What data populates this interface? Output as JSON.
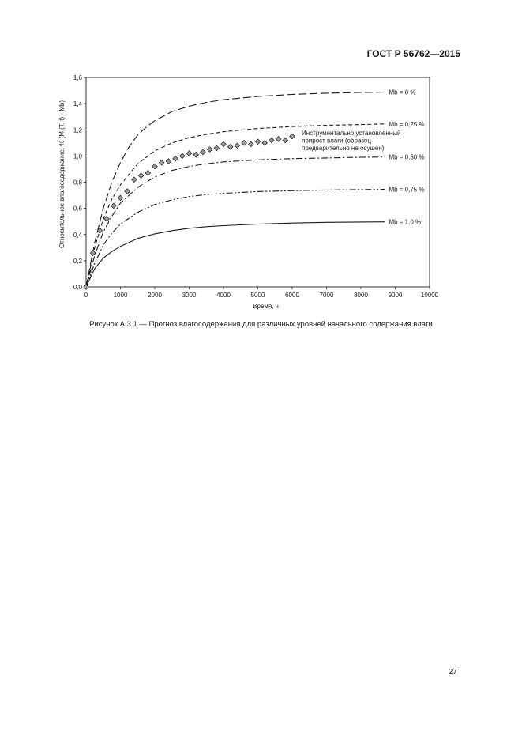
{
  "document": {
    "id": "ГОСТ Р 56762—2015",
    "page_number": "27"
  },
  "figure": {
    "caption": "Рисунок А.3.1 — Прогноз влагосодержания для различных уровней начального содержания влаги"
  },
  "colors": {
    "ink": "#1a1a1a",
    "marker_fill": "#9a9a9a"
  },
  "chart_data": {
    "type": "line",
    "title": "",
    "xlabel": "Время, ч",
    "ylabel": "Относительное влагосодержание, % (M (T, t) - Mb)",
    "xlim": [
      0,
      10000
    ],
    "ylim": [
      0,
      1.6
    ],
    "xticks": [
      0,
      1000,
      2000,
      3000,
      4000,
      5000,
      6000,
      7000,
      8000,
      9000,
      10000
    ],
    "xtick_labels": [
      "0",
      "1000",
      "2000",
      "3000",
      "4000",
      "5000",
      "6000",
      "7000",
      "8000",
      "9000",
      "10000"
    ],
    "yticks": [
      0,
      0.2,
      0.4,
      0.6,
      0.8,
      1.0,
      1.2,
      1.4,
      1.6
    ],
    "ytick_labels": [
      "0,0",
      "0,2",
      "0,4",
      "0,6",
      "0,8",
      "1,0",
      "1,2",
      "1,4",
      "1,6"
    ],
    "grid": false,
    "legend": "labels at line ends (right)",
    "series": [
      {
        "name": "Mb = 0 %",
        "style": "long-dash",
        "x": [
          0,
          250,
          500,
          750,
          1000,
          1250,
          1500,
          1750,
          2000,
          2500,
          3000,
          3500,
          4000,
          5000,
          6000,
          7000,
          8000,
          8700
        ],
        "y": [
          0,
          0.34,
          0.6,
          0.8,
          0.95,
          1.07,
          1.16,
          1.22,
          1.27,
          1.34,
          1.38,
          1.41,
          1.43,
          1.455,
          1.47,
          1.48,
          1.485,
          1.488
        ]
      },
      {
        "name": "Mb = 0,25 %",
        "style": "dash",
        "x": [
          0,
          250,
          500,
          750,
          1000,
          1500,
          2000,
          2500,
          3000,
          3500,
          4000,
          5000,
          6000,
          7000,
          8000,
          8700
        ],
        "y": [
          0,
          0.3,
          0.52,
          0.67,
          0.78,
          0.94,
          1.04,
          1.1,
          1.14,
          1.165,
          1.185,
          1.21,
          1.225,
          1.235,
          1.24,
          1.245
        ]
      },
      {
        "name": "Mb = 0,50 %",
        "style": "dash-dot",
        "x": [
          0,
          250,
          500,
          750,
          1000,
          1500,
          2000,
          2500,
          3000,
          3500,
          4000,
          5000,
          6000,
          7000,
          8000,
          8700
        ],
        "y": [
          0,
          0.24,
          0.42,
          0.54,
          0.64,
          0.76,
          0.84,
          0.89,
          0.92,
          0.94,
          0.955,
          0.97,
          0.98,
          0.985,
          0.99,
          0.992
        ]
      },
      {
        "name": "Mb = 0,75 %",
        "style": "dash-dot-dot",
        "x": [
          0,
          250,
          500,
          750,
          1000,
          1500,
          2000,
          2500,
          3000,
          3500,
          4000,
          5000,
          6000,
          7000,
          8000,
          8700
        ],
        "y": [
          0,
          0.18,
          0.32,
          0.41,
          0.48,
          0.57,
          0.63,
          0.665,
          0.69,
          0.705,
          0.715,
          0.728,
          0.735,
          0.74,
          0.744,
          0.745
        ]
      },
      {
        "name": "Mb = 1,0 %",
        "style": "solid",
        "x": [
          0,
          250,
          500,
          750,
          1000,
          1500,
          2000,
          2500,
          3000,
          3500,
          4000,
          5000,
          6000,
          7000,
          8000,
          8700
        ],
        "y": [
          0,
          0.14,
          0.22,
          0.27,
          0.31,
          0.37,
          0.405,
          0.43,
          0.448,
          0.46,
          0.468,
          0.48,
          0.488,
          0.493,
          0.496,
          0.497
        ]
      }
    ],
    "measured": {
      "label": [
        "Инструментально установленный",
        "прирост влаги (образец",
        "предварительно не осушен)"
      ],
      "marker": "diamond",
      "x": [
        0,
        200,
        400,
        600,
        800,
        1000,
        1200,
        1400,
        1600,
        1800,
        2000,
        2200,
        2400,
        2600,
        2800,
        3000,
        3200,
        3400,
        3600,
        3800,
        4000,
        4200,
        4400,
        4600,
        4800,
        5000,
        5200,
        5400,
        5600,
        5800,
        6000
      ],
      "y": [
        0,
        0.26,
        0.43,
        0.52,
        0.62,
        0.68,
        0.73,
        0.82,
        0.85,
        0.87,
        0.92,
        0.95,
        0.96,
        0.98,
        1.0,
        1.02,
        1.01,
        1.03,
        1.05,
        1.06,
        1.09,
        1.07,
        1.08,
        1.1,
        1.09,
        1.11,
        1.1,
        1.12,
        1.13,
        1.12,
        1.15
      ]
    }
  }
}
